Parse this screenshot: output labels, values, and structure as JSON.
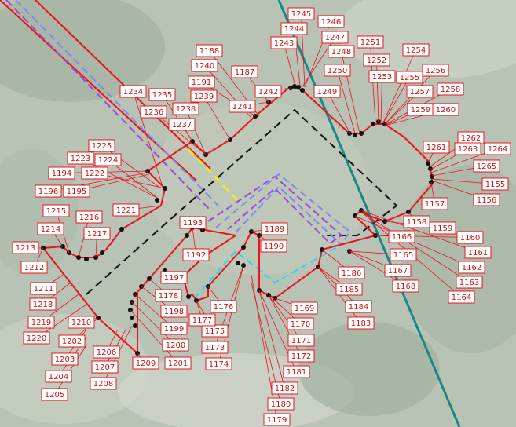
{
  "colors": {
    "background": "#b8c2b4",
    "boundary": "#e8141e",
    "survey_point": "#111111",
    "transmission_line": "#168a86",
    "black_dashed": "#111111",
    "purple_dashed": "#9a4ad8",
    "blue_dashed": "#7b8cf0",
    "yellow_dashed": "#f0f000",
    "cyan_dashed": "#28d8e8",
    "label_border": "#e8141e",
    "label_text": "#c81414",
    "label_bg": "#ffffff"
  },
  "point_labels": [
    "1155",
    "1156",
    "1157",
    "1158",
    "1159",
    "1160",
    "1161",
    "1162",
    "1163",
    "1164",
    "1165",
    "1166",
    "1167",
    "1168",
    "1169",
    "1170",
    "1171",
    "1172",
    "1173",
    "1174",
    "1175",
    "1176",
    "1177",
    "1178",
    "1179",
    "1180",
    "1181",
    "1182",
    "1183",
    "1184",
    "1185",
    "1186",
    "1187",
    "1188",
    "1189",
    "1190",
    "1191",
    "1192",
    "1193",
    "1194",
    "1195",
    "1196",
    "1197",
    "1198",
    "1199",
    "1200",
    "1201",
    "1202",
    "1203",
    "1204",
    "1205",
    "1206",
    "1207",
    "1208",
    "1209",
    "1210",
    "1211",
    "1212",
    "1213",
    "1214",
    "1215",
    "1216",
    "1217",
    "1218",
    "1219",
    "1220",
    "1221",
    "1222",
    "1223",
    "1224",
    "1225",
    "1234",
    "1235",
    "1236",
    "1237",
    "1238",
    "1239",
    "1240",
    "1241",
    "1242",
    "1243",
    "1244",
    "1245",
    "1246",
    "1247",
    "1248",
    "1249",
    "1250",
    "1251",
    "1252",
    "1253",
    "1254",
    "1255",
    "1256",
    "1257",
    "1258",
    "1259",
    "1260",
    "1261",
    "1262",
    "1263",
    "1264",
    "1265"
  ]
}
